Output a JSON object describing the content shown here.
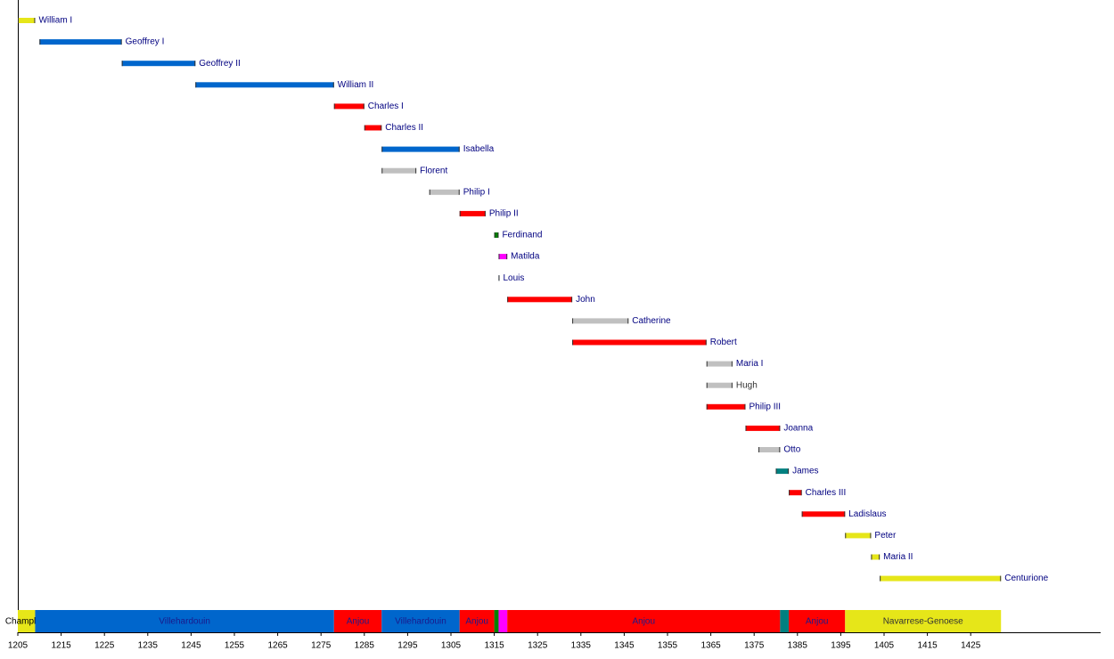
{
  "chart_data": {
    "type": "timeline",
    "rulers": [
      {
        "name": "William I",
        "start": 1205,
        "end": 1209,
        "color": "#e6e619",
        "label_color": "#000080"
      },
      {
        "name": "Geoffrey I",
        "start": 1210,
        "end": 1229,
        "color": "#0066cc",
        "label_color": "#000080"
      },
      {
        "name": "Geoffrey II",
        "start": 1229,
        "end": 1246,
        "color": "#0066cc",
        "label_color": "#000080"
      },
      {
        "name": "William II",
        "start": 1246,
        "end": 1278,
        "color": "#0066cc",
        "label_color": "#000080"
      },
      {
        "name": "Charles I",
        "start": 1278,
        "end": 1285,
        "color": "#ff0000",
        "label_color": "#000080"
      },
      {
        "name": "Charles II",
        "start": 1285,
        "end": 1289,
        "color": "#ff0000",
        "label_color": "#000080"
      },
      {
        "name": "Isabella",
        "start": 1289,
        "end": 1307,
        "color": "#0066cc",
        "label_color": "#000080"
      },
      {
        "name": "Florent",
        "start": 1289,
        "end": 1297,
        "color": "#c0c0c0",
        "label_color": "#000080"
      },
      {
        "name": "Philip I",
        "start": 1300,
        "end": 1307,
        "color": "#c0c0c0",
        "label_color": "#000080"
      },
      {
        "name": "Philip II",
        "start": 1307,
        "end": 1313,
        "color": "#ff0000",
        "label_color": "#000080"
      },
      {
        "name": "Ferdinand",
        "start": 1315,
        "end": 1316,
        "color": "#008000",
        "label_color": "#000080"
      },
      {
        "name": "Matilda",
        "start": 1316,
        "end": 1318,
        "color": "#ff00ff",
        "label_color": "#000080"
      },
      {
        "name": "Louis",
        "start": 1316,
        "end": 1316,
        "color": "#0066cc",
        "label_color": "#000080"
      },
      {
        "name": "John",
        "start": 1318,
        "end": 1333,
        "color": "#ff0000",
        "label_color": "#000080"
      },
      {
        "name": "Catherine",
        "start": 1333,
        "end": 1346,
        "color": "#c0c0c0",
        "label_color": "#000080"
      },
      {
        "name": "Robert",
        "start": 1333,
        "end": 1364,
        "color": "#ff0000",
        "label_color": "#000080"
      },
      {
        "name": "Maria I",
        "start": 1364,
        "end": 1370,
        "color": "#c0c0c0",
        "label_color": "#000080"
      },
      {
        "name": "Hugh",
        "start": 1364,
        "end": 1370,
        "color": "#c0c0c0",
        "label_color": "#333333"
      },
      {
        "name": "Philip III",
        "start": 1364,
        "end": 1373,
        "color": "#ff0000",
        "label_color": "#000080"
      },
      {
        "name": "Joanna",
        "start": 1373,
        "end": 1381,
        "color": "#ff0000",
        "label_color": "#000080"
      },
      {
        "name": "Otto",
        "start": 1376,
        "end": 1381,
        "color": "#c0c0c0",
        "label_color": "#000080"
      },
      {
        "name": "James",
        "start": 1380,
        "end": 1383,
        "color": "#008080",
        "label_color": "#000080"
      },
      {
        "name": "Charles III",
        "start": 1383,
        "end": 1386,
        "color": "#ff0000",
        "label_color": "#000080"
      },
      {
        "name": "Ladislaus",
        "start": 1386,
        "end": 1396,
        "color": "#ff0000",
        "label_color": "#000080"
      },
      {
        "name": "Peter",
        "start": 1396,
        "end": 1402,
        "color": "#e6e619",
        "label_color": "#000080"
      },
      {
        "name": "Maria II",
        "start": 1402,
        "end": 1404,
        "color": "#e6e619",
        "label_color": "#000080"
      },
      {
        "name": "Centurione",
        "start": 1404,
        "end": 1432,
        "color": "#e6e619",
        "label_color": "#000080"
      }
    ],
    "dynasties": [
      {
        "name": "Champlitte",
        "start": 1205,
        "end": 1209,
        "color": "#e6e619",
        "label_color": "#000000"
      },
      {
        "name": "Villehardouin",
        "start": 1209,
        "end": 1278,
        "color": "#0066cc",
        "label_color": "#1a1a8c"
      },
      {
        "name": "Anjou",
        "start": 1278,
        "end": 1289,
        "color": "#ff0000",
        "label_color": "#1a1a8c"
      },
      {
        "name": "Villehardouin",
        "start": 1289,
        "end": 1307,
        "color": "#0066cc",
        "label_color": "#1a1a8c"
      },
      {
        "name": "Anjou",
        "start": 1307,
        "end": 1315,
        "color": "#ff0000",
        "label_color": "#1a1a8c"
      },
      {
        "name": null,
        "start": 1315,
        "end": 1316,
        "color": "#008000",
        "label_color": "#1a1a8c"
      },
      {
        "name": null,
        "start": 1316,
        "end": 1318,
        "color": "#ff00ff",
        "label_color": "#1a1a8c"
      },
      {
        "name": "Anjou",
        "start": 1318,
        "end": 1381,
        "color": "#ff0000",
        "label_color": "#1a1a8c"
      },
      {
        "name": null,
        "start": 1381,
        "end": 1383,
        "color": "#008080",
        "label_color": "#1a1a8c"
      },
      {
        "name": "Anjou",
        "start": 1383,
        "end": 1396,
        "color": "#ff0000",
        "label_color": "#1a1a8c"
      },
      {
        "name": "Navarrese-Genoese",
        "start": 1396,
        "end": 1432,
        "color": "#e6e619",
        "label_color": "#333333"
      }
    ],
    "xlim": [
      1205,
      1455
    ],
    "xticks": [
      1205,
      1215,
      1225,
      1235,
      1245,
      1255,
      1265,
      1275,
      1285,
      1295,
      1305,
      1315,
      1325,
      1335,
      1345,
      1355,
      1365,
      1375,
      1385,
      1395,
      1405,
      1415,
      1425
    ]
  }
}
